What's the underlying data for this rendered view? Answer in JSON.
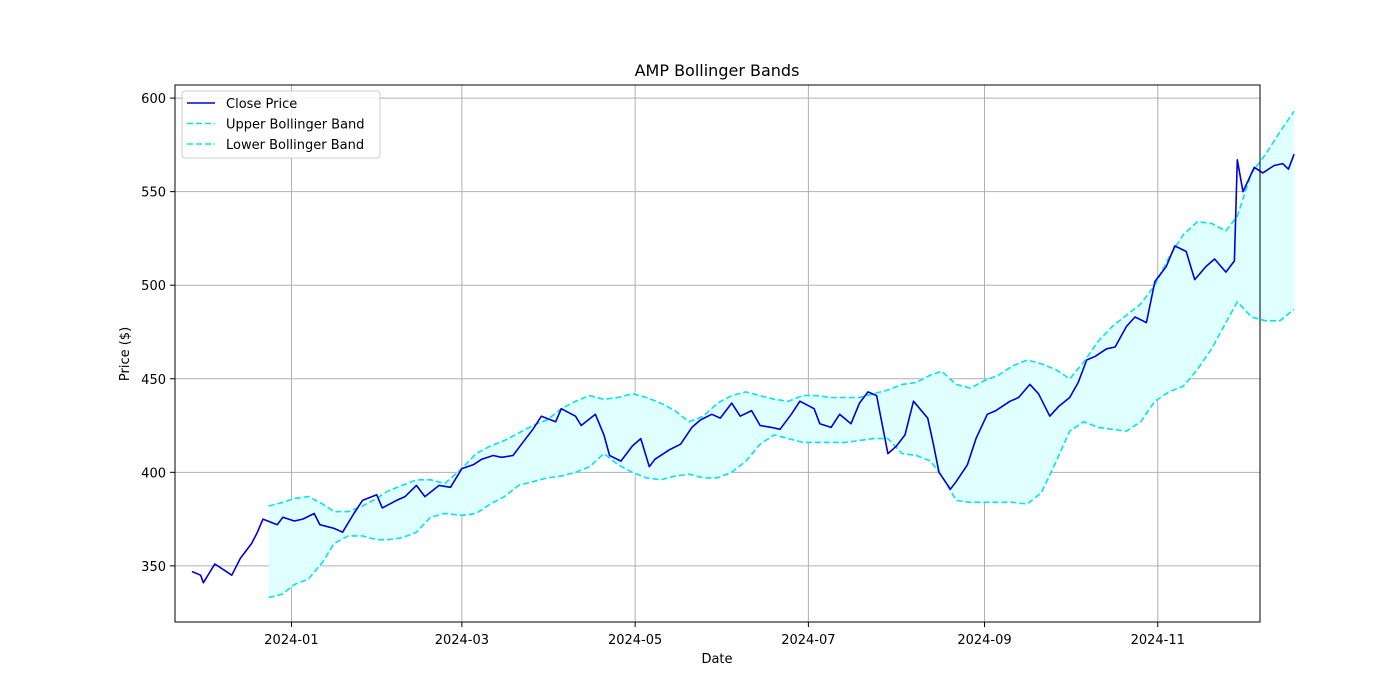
{
  "chart_data": {
    "type": "line",
    "title": "AMP Bollinger Bands",
    "xlabel": "Date",
    "ylabel": "Price ($)",
    "ylim": [
      320,
      607
    ],
    "xlim": [
      "2023-11-21",
      "2024-12-07"
    ],
    "grid": true,
    "legend_position": "top-left",
    "x_ticks": [
      "2024-01",
      "2024-03",
      "2024-05",
      "2024-07",
      "2024-09",
      "2024-11"
    ],
    "y_ticks": [
      350,
      400,
      450,
      500,
      550,
      600
    ],
    "band_fill_color": "#e0ffff",
    "series": [
      {
        "name": "Close Price",
        "color": "#0000dd",
        "style": "solid",
        "points": [
          [
            "2023-11-27",
            347
          ],
          [
            "2023-11-30",
            345
          ],
          [
            "2023-12-01",
            341
          ],
          [
            "2023-12-05",
            351
          ],
          [
            "2023-12-08",
            348
          ],
          [
            "2023-12-11",
            345
          ],
          [
            "2023-12-14",
            354
          ],
          [
            "2023-12-18",
            362
          ],
          [
            "2023-12-20",
            368
          ],
          [
            "2023-12-22",
            375
          ],
          [
            "2023-12-27",
            372
          ],
          [
            "2023-12-29",
            376
          ],
          [
            "2024-01-02",
            374
          ],
          [
            "2024-01-05",
            375
          ],
          [
            "2024-01-09",
            378
          ],
          [
            "2024-01-11",
            372
          ],
          [
            "2024-01-16",
            370
          ],
          [
            "2024-01-19",
            368
          ],
          [
            "2024-01-23",
            378
          ],
          [
            "2024-01-26",
            385
          ],
          [
            "2024-01-31",
            388
          ],
          [
            "2024-02-02",
            381
          ],
          [
            "2024-02-07",
            385
          ],
          [
            "2024-02-10",
            387
          ],
          [
            "2024-02-14",
            393
          ],
          [
            "2024-02-17",
            387
          ],
          [
            "2024-02-22",
            393
          ],
          [
            "2024-02-26",
            392
          ],
          [
            "2024-03-01",
            402
          ],
          [
            "2024-03-05",
            404
          ],
          [
            "2024-03-08",
            407
          ],
          [
            "2024-03-12",
            409
          ],
          [
            "2024-03-15",
            408
          ],
          [
            "2024-03-19",
            409
          ],
          [
            "2024-03-22",
            415
          ],
          [
            "2024-03-26",
            423
          ],
          [
            "2024-03-29",
            430
          ],
          [
            "2024-04-03",
            427
          ],
          [
            "2024-04-05",
            434
          ],
          [
            "2024-04-10",
            430
          ],
          [
            "2024-04-12",
            425
          ],
          [
            "2024-04-17",
            431
          ],
          [
            "2024-04-20",
            420
          ],
          [
            "2024-04-22",
            409
          ],
          [
            "2024-04-26",
            406
          ],
          [
            "2024-04-30",
            414
          ],
          [
            "2024-05-03",
            418
          ],
          [
            "2024-05-06",
            403
          ],
          [
            "2024-05-08",
            407
          ],
          [
            "2024-05-13",
            412
          ],
          [
            "2024-05-17",
            415
          ],
          [
            "2024-05-21",
            424
          ],
          [
            "2024-05-24",
            428
          ],
          [
            "2024-05-28",
            431
          ],
          [
            "2024-05-31",
            429
          ],
          [
            "2024-06-04",
            437
          ],
          [
            "2024-06-07",
            430
          ],
          [
            "2024-06-11",
            433
          ],
          [
            "2024-06-14",
            425
          ],
          [
            "2024-06-18",
            424
          ],
          [
            "2024-06-21",
            423
          ],
          [
            "2024-06-25",
            431
          ],
          [
            "2024-06-28",
            438
          ],
          [
            "2024-07-03",
            434
          ],
          [
            "2024-07-05",
            426
          ],
          [
            "2024-07-09",
            424
          ],
          [
            "2024-07-12",
            431
          ],
          [
            "2024-07-16",
            426
          ],
          [
            "2024-07-19",
            437
          ],
          [
            "2024-07-22",
            443
          ],
          [
            "2024-07-25",
            441
          ],
          [
            "2024-07-29",
            410
          ],
          [
            "2024-08-01",
            414
          ],
          [
            "2024-08-04",
            420
          ],
          [
            "2024-08-07",
            438
          ],
          [
            "2024-08-12",
            429
          ],
          [
            "2024-08-14",
            415
          ],
          [
            "2024-08-16",
            400
          ],
          [
            "2024-08-20",
            391
          ],
          [
            "2024-08-22",
            395
          ],
          [
            "2024-08-26",
            404
          ],
          [
            "2024-08-29",
            418
          ],
          [
            "2024-09-02",
            431
          ],
          [
            "2024-09-05",
            433
          ],
          [
            "2024-09-10",
            438
          ],
          [
            "2024-09-13",
            440
          ],
          [
            "2024-09-17",
            447
          ],
          [
            "2024-09-20",
            442
          ],
          [
            "2024-09-24",
            430
          ],
          [
            "2024-09-27",
            435
          ],
          [
            "2024-10-01",
            440
          ],
          [
            "2024-10-04",
            448
          ],
          [
            "2024-10-07",
            460
          ],
          [
            "2024-10-10",
            462
          ],
          [
            "2024-10-14",
            466
          ],
          [
            "2024-10-17",
            467
          ],
          [
            "2024-10-21",
            478
          ],
          [
            "2024-10-24",
            483
          ],
          [
            "2024-10-28",
            480
          ],
          [
            "2024-10-31",
            502
          ],
          [
            "2024-11-04",
            510
          ],
          [
            "2024-11-07",
            521
          ],
          [
            "2024-11-11",
            518
          ],
          [
            "2024-11-14",
            503
          ],
          [
            "2024-11-18",
            510
          ],
          [
            "2024-11-21",
            514
          ],
          [
            "2024-11-25",
            507
          ],
          [
            "2024-11-28",
            513
          ],
          [
            "2024-11-29",
            567
          ],
          [
            "2024-12-01",
            550
          ],
          [
            "2024-12-05",
            563
          ],
          [
            "2024-12-08",
            560
          ],
          [
            "2024-12-12",
            564
          ],
          [
            "2024-12-15",
            565
          ],
          [
            "2024-12-17",
            562
          ],
          [
            "2024-12-19",
            570
          ]
        ]
      },
      {
        "name": "Upper Bollinger Band",
        "color": "#00e5ee",
        "style": "dashed",
        "points": [
          [
            "2023-12-24",
            382
          ],
          [
            "2023-12-29",
            384
          ],
          [
            "2024-01-02",
            386
          ],
          [
            "2024-01-07",
            387
          ],
          [
            "2024-01-12",
            383
          ],
          [
            "2024-01-16",
            379
          ],
          [
            "2024-01-21",
            379
          ],
          [
            "2024-01-26",
            382
          ],
          [
            "2024-01-31",
            386
          ],
          [
            "2024-02-04",
            390
          ],
          [
            "2024-02-09",
            393
          ],
          [
            "2024-02-14",
            396
          ],
          [
            "2024-02-19",
            396
          ],
          [
            "2024-02-24",
            394
          ],
          [
            "2024-03-01",
            402
          ],
          [
            "2024-03-06",
            410
          ],
          [
            "2024-03-11",
            414
          ],
          [
            "2024-03-16",
            417
          ],
          [
            "2024-03-21",
            421
          ],
          [
            "2024-03-26",
            425
          ],
          [
            "2024-03-31",
            428
          ],
          [
            "2024-04-05",
            434
          ],
          [
            "2024-04-10",
            438
          ],
          [
            "2024-04-15",
            441
          ],
          [
            "2024-04-20",
            439
          ],
          [
            "2024-04-25",
            440
          ],
          [
            "2024-04-30",
            442
          ],
          [
            "2024-05-05",
            440
          ],
          [
            "2024-05-10",
            437
          ],
          [
            "2024-05-15",
            433
          ],
          [
            "2024-05-20",
            427
          ],
          [
            "2024-05-25",
            430
          ],
          [
            "2024-05-30",
            437
          ],
          [
            "2024-06-04",
            441
          ],
          [
            "2024-06-09",
            443
          ],
          [
            "2024-06-14",
            441
          ],
          [
            "2024-06-19",
            439
          ],
          [
            "2024-06-24",
            438
          ],
          [
            "2024-06-29",
            441
          ],
          [
            "2024-07-04",
            441
          ],
          [
            "2024-07-09",
            440
          ],
          [
            "2024-07-14",
            440
          ],
          [
            "2024-07-19",
            440
          ],
          [
            "2024-07-24",
            442
          ],
          [
            "2024-07-29",
            444
          ],
          [
            "2024-08-03",
            447
          ],
          [
            "2024-08-08",
            448
          ],
          [
            "2024-08-13",
            452
          ],
          [
            "2024-08-17",
            454
          ],
          [
            "2024-08-22",
            447
          ],
          [
            "2024-08-27",
            445
          ],
          [
            "2024-09-01",
            449
          ],
          [
            "2024-09-06",
            452
          ],
          [
            "2024-09-11",
            457
          ],
          [
            "2024-09-16",
            460
          ],
          [
            "2024-09-21",
            458
          ],
          [
            "2024-09-26",
            455
          ],
          [
            "2024-10-01",
            450
          ],
          [
            "2024-10-06",
            459
          ],
          [
            "2024-10-11",
            470
          ],
          [
            "2024-10-16",
            478
          ],
          [
            "2024-10-21",
            484
          ],
          [
            "2024-10-26",
            490
          ],
          [
            "2024-10-31",
            500
          ],
          [
            "2024-11-05",
            515
          ],
          [
            "2024-11-10",
            527
          ],
          [
            "2024-11-15",
            534
          ],
          [
            "2024-11-20",
            533
          ],
          [
            "2024-11-25",
            529
          ],
          [
            "2024-11-29",
            537
          ],
          [
            "2024-12-04",
            560
          ],
          [
            "2024-12-09",
            570
          ],
          [
            "2024-12-14",
            582
          ],
          [
            "2024-12-19",
            593
          ]
        ]
      },
      {
        "name": "Lower Bollinger Band",
        "color": "#00e5ee",
        "style": "dashed",
        "points": [
          [
            "2023-12-24",
            333
          ],
          [
            "2023-12-29",
            335
          ],
          [
            "2024-01-02",
            340
          ],
          [
            "2024-01-07",
            343
          ],
          [
            "2024-01-12",
            352
          ],
          [
            "2024-01-16",
            362
          ],
          [
            "2024-01-21",
            366
          ],
          [
            "2024-01-26",
            366
          ],
          [
            "2024-01-31",
            364
          ],
          [
            "2024-02-04",
            364
          ],
          [
            "2024-02-09",
            365
          ],
          [
            "2024-02-14",
            368
          ],
          [
            "2024-02-19",
            376
          ],
          [
            "2024-02-24",
            378
          ],
          [
            "2024-03-01",
            377
          ],
          [
            "2024-03-06",
            378
          ],
          [
            "2024-03-11",
            383
          ],
          [
            "2024-03-16",
            387
          ],
          [
            "2024-03-21",
            393
          ],
          [
            "2024-03-26",
            395
          ],
          [
            "2024-03-31",
            397
          ],
          [
            "2024-04-05",
            398
          ],
          [
            "2024-04-10",
            400
          ],
          [
            "2024-04-15",
            403
          ],
          [
            "2024-04-20",
            410
          ],
          [
            "2024-04-25",
            404
          ],
          [
            "2024-04-30",
            400
          ],
          [
            "2024-05-05",
            397
          ],
          [
            "2024-05-10",
            396
          ],
          [
            "2024-05-15",
            398
          ],
          [
            "2024-05-20",
            399
          ],
          [
            "2024-05-25",
            397
          ],
          [
            "2024-05-30",
            397
          ],
          [
            "2024-06-04",
            400
          ],
          [
            "2024-06-09",
            406
          ],
          [
            "2024-06-14",
            415
          ],
          [
            "2024-06-19",
            420
          ],
          [
            "2024-06-24",
            418
          ],
          [
            "2024-06-29",
            416
          ],
          [
            "2024-07-04",
            416
          ],
          [
            "2024-07-09",
            416
          ],
          [
            "2024-07-14",
            416
          ],
          [
            "2024-07-19",
            417
          ],
          [
            "2024-07-24",
            418
          ],
          [
            "2024-07-29",
            418
          ],
          [
            "2024-08-03",
            410
          ],
          [
            "2024-08-08",
            409
          ],
          [
            "2024-08-13",
            406
          ],
          [
            "2024-08-17",
            398
          ],
          [
            "2024-08-22",
            385
          ],
          [
            "2024-08-27",
            384
          ],
          [
            "2024-09-01",
            384
          ],
          [
            "2024-09-06",
            384
          ],
          [
            "2024-09-11",
            384
          ],
          [
            "2024-09-16",
            383
          ],
          [
            "2024-09-21",
            389
          ],
          [
            "2024-09-26",
            405
          ],
          [
            "2024-10-01",
            422
          ],
          [
            "2024-10-06",
            427
          ],
          [
            "2024-10-11",
            424
          ],
          [
            "2024-10-16",
            423
          ],
          [
            "2024-10-21",
            422
          ],
          [
            "2024-10-26",
            427
          ],
          [
            "2024-10-31",
            438
          ],
          [
            "2024-11-05",
            443
          ],
          [
            "2024-11-10",
            446
          ],
          [
            "2024-11-15",
            455
          ],
          [
            "2024-11-20",
            466
          ],
          [
            "2024-11-25",
            480
          ],
          [
            "2024-11-29",
            491
          ],
          [
            "2024-12-04",
            483
          ],
          [
            "2024-12-09",
            481
          ],
          [
            "2024-12-14",
            481
          ],
          [
            "2024-12-19",
            487
          ]
        ]
      }
    ]
  }
}
